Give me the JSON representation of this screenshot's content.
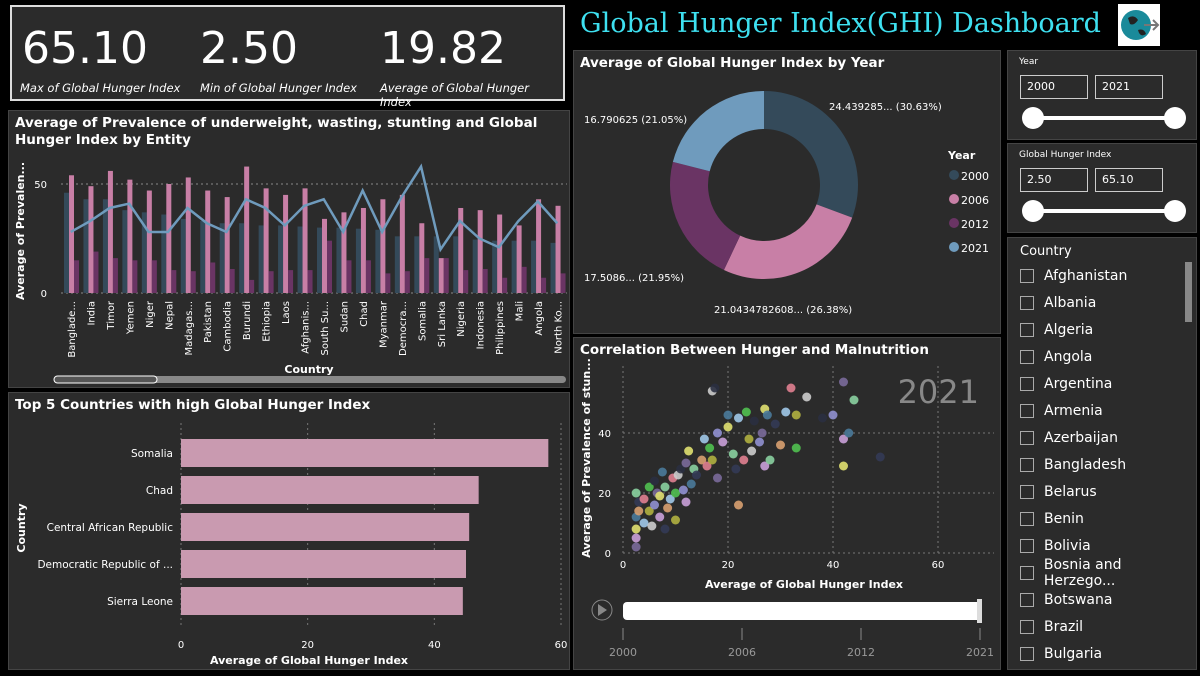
{
  "kpis": [
    {
      "value": "65.10",
      "label": "Max of Global Hunger Index"
    },
    {
      "value": "2.50",
      "label": "Min of Global Hunger Index"
    },
    {
      "value": "19.82",
      "label": "Average of Global Hunger Index"
    }
  ],
  "title": "Global Hunger Index(GHI) Dashboard",
  "colors": {
    "c2000": "#344a5a",
    "c2006": "#c87fa6",
    "c2012": "#6a3464",
    "c2021": "#6f9bbd",
    "title": "#3ee0f0"
  },
  "chart_data": [
    {
      "type": "bar",
      "title": "Average of Prevalence of underweight, wasting, stunting and Global Hunger Index by Entity",
      "xlabel": "Country",
      "ylabel": "Average of Prevalen...",
      "yticks": [
        0,
        50
      ],
      "ylim": [
        0,
        60
      ],
      "grid": true,
      "categories": [
        "Banglade...",
        "India",
        "Timor",
        "Yemen",
        "Niger",
        "Nepal",
        "Madagas...",
        "Pakistan",
        "Cambodia",
        "Burundi",
        "Ethiopia",
        "Laos",
        "Afghanis...",
        "South Su...",
        "Sudan",
        "Chad",
        "Myanmar",
        "Democra...",
        "Somalia",
        "Sri Lanka",
        "Nigeria",
        "Indonesia",
        "Philippines",
        "Mali",
        "Angola",
        "North Ko..."
      ],
      "series": [
        {
          "values": [
            46,
            43,
            43,
            38,
            37,
            36,
            34,
            33,
            32,
            32,
            31,
            31,
            30.5,
            30,
            30,
            29.5,
            29,
            26,
            26,
            26,
            26,
            24.5,
            24,
            24,
            24,
            23
          ],
          "color": "#344a5a"
        },
        {
          "values": [
            54,
            49,
            56,
            52,
            47,
            50,
            53,
            47,
            44,
            58,
            48,
            45,
            48,
            34,
            37,
            39,
            43,
            45,
            32,
            16,
            39,
            38,
            36,
            31,
            43,
            40
          ],
          "color": "#c87fa6"
        },
        {
          "values": [
            15,
            19,
            16,
            15,
            15,
            10.5,
            10,
            14,
            11,
            6,
            10,
            10.5,
            10.5,
            24,
            15,
            15,
            9,
            10,
            16,
            16,
            10.5,
            11,
            7,
            12,
            7,
            9
          ],
          "color": "#6a3464"
        }
      ],
      "line": {
        "values": [
          28,
          33,
          39,
          41,
          28,
          28,
          39,
          32,
          28,
          43,
          39,
          31,
          40,
          43,
          28,
          47,
          28,
          44,
          58,
          20,
          33,
          25,
          21,
          33,
          42,
          32
        ],
        "color": "#6f9bbd"
      }
    },
    {
      "type": "bar",
      "orientation": "horizontal",
      "title": "Top 5 Countries with high Global Hunger Index",
      "xlabel": "Average of Global Hunger Index",
      "ylabel": "Country",
      "xticks": [
        0,
        20,
        40,
        60
      ],
      "xlim": [
        0,
        60
      ],
      "categories": [
        "Somalia",
        "Chad",
        "Central African Republic",
        "Democratic Republic of ...",
        "Sierra Leone"
      ],
      "values": [
        58,
        47,
        45.5,
        45,
        44.5
      ],
      "color": "#c99ab0"
    },
    {
      "type": "pie",
      "donut": true,
      "title": "Average of Global Hunger Index by Year",
      "legend_title": "Year",
      "legend": "right",
      "slices": [
        {
          "name": "2000",
          "value": 24.439285,
          "label": "24.439285... (30.63%)",
          "color": "#344a5a"
        },
        {
          "name": "2006",
          "value": 21.0434782608,
          "label": "21.0434782608... (26.38%)",
          "color": "#c87fa6"
        },
        {
          "name": "2012",
          "value": 17.5086,
          "label": "17.5086... (21.95%)",
          "color": "#6a3464"
        },
        {
          "name": "2021",
          "value": 16.790625,
          "label": "16.790625 (21.05%)",
          "color": "#6f9bbd"
        }
      ]
    },
    {
      "type": "scatter",
      "title": "Correlation Between Hunger and Malnutrition",
      "xlabel": "Average of Global Hunger Index",
      "ylabel": "Average of Prevalence of stun...",
      "xticks": [
        0,
        20,
        40,
        60
      ],
      "yticks": [
        0,
        20,
        40
      ],
      "xlim": [
        0,
        70
      ],
      "ylim": [
        0,
        60
      ],
      "frame_label": "2021",
      "points": [
        [
          2.5,
          2
        ],
        [
          2.5,
          5
        ],
        [
          2.5,
          8
        ],
        [
          2.5,
          12
        ],
        [
          2.5,
          20
        ],
        [
          3,
          17
        ],
        [
          3,
          14
        ],
        [
          4,
          10
        ],
        [
          4,
          18
        ],
        [
          5,
          22
        ],
        [
          5,
          14
        ],
        [
          5.5,
          9
        ],
        [
          6,
          24
        ],
        [
          6,
          16
        ],
        [
          6.5,
          20
        ],
        [
          7,
          12
        ],
        [
          7,
          19
        ],
        [
          7.5,
          27
        ],
        [
          8,
          22
        ],
        [
          8,
          8
        ],
        [
          8.5,
          15
        ],
        [
          9,
          18
        ],
        [
          9.5,
          25
        ],
        [
          10,
          20
        ],
        [
          10,
          11
        ],
        [
          10.5,
          26
        ],
        [
          11,
          28
        ],
        [
          11.5,
          21
        ],
        [
          12,
          30
        ],
        [
          12,
          17
        ],
        [
          12.5,
          34
        ],
        [
          13,
          23
        ],
        [
          13.5,
          28
        ],
        [
          14,
          26
        ],
        [
          15,
          31
        ],
        [
          15.5,
          38
        ],
        [
          16,
          29
        ],
        [
          16.5,
          35
        ],
        [
          17,
          31
        ],
        [
          17,
          54
        ],
        [
          17.5,
          55
        ],
        [
          18,
          40
        ],
        [
          18,
          25
        ],
        [
          19,
          37
        ],
        [
          20,
          42
        ],
        [
          20,
          46
        ],
        [
          21,
          33
        ],
        [
          21.5,
          28
        ],
        [
          22,
          16
        ],
        [
          22,
          45
        ],
        [
          23,
          31
        ],
        [
          23.5,
          47
        ],
        [
          24,
          38
        ],
        [
          24.5,
          34
        ],
        [
          25,
          44
        ],
        [
          26,
          37
        ],
        [
          26.5,
          40
        ],
        [
          27,
          29
        ],
        [
          27,
          48
        ],
        [
          27.5,
          46
        ],
        [
          28,
          31
        ],
        [
          29,
          43
        ],
        [
          30,
          36
        ],
        [
          31,
          47
        ],
        [
          32,
          55
        ],
        [
          33,
          35
        ],
        [
          33,
          46
        ],
        [
          35,
          52
        ],
        [
          38,
          45
        ],
        [
          40,
          46
        ],
        [
          42,
          57
        ],
        [
          42,
          38
        ],
        [
          42,
          29
        ],
        [
          43,
          40
        ],
        [
          44,
          51
        ],
        [
          49,
          32
        ]
      ],
      "palette": [
        "#7a6a9a",
        "#c9a0d8",
        "#e0e070",
        "#4a7a9a",
        "#8ad0a0",
        "#333a55",
        "#d8a070",
        "#a0c8e8",
        "#e08090",
        "#50c050",
        "#b0b040",
        "#cccccc",
        "#2a2f40",
        "#9090d0"
      ]
    },
    {
      "type": "play_axis",
      "ticks": [
        "2000",
        "2006",
        "2012",
        "2021"
      ],
      "value": "2021"
    }
  ],
  "slicers": {
    "year": {
      "label": "Year",
      "from": "2000",
      "to": "2021"
    },
    "ghi": {
      "label": "Global Hunger Index",
      "from": "2.50",
      "to": "65.10"
    }
  },
  "country": {
    "label": "Country",
    "items": [
      "Afghanistan",
      "Albania",
      "Algeria",
      "Angola",
      "Argentina",
      "Armenia",
      "Azerbaijan",
      "Bangladesh",
      "Belarus",
      "Benin",
      "Bolivia",
      "Bosnia and Herzego...",
      "Botswana",
      "Brazil",
      "Bulgaria"
    ]
  }
}
